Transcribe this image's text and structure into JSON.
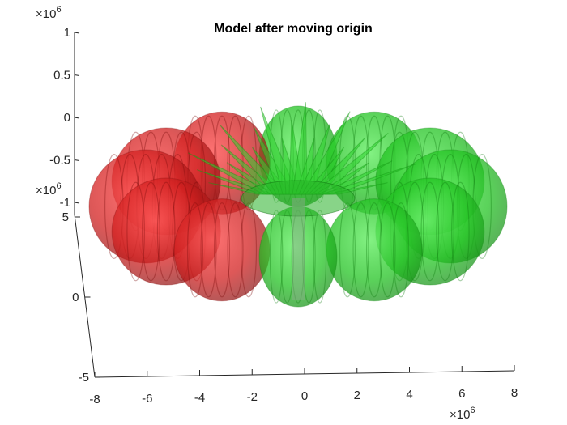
{
  "chart_data": {
    "type": "surface3d",
    "title": "Model after moving origin",
    "xlabel": "",
    "ylabel": "",
    "zlabel": "",
    "x_axis": {
      "ticks": [
        -8,
        -6,
        -4,
        -2,
        0,
        2,
        4,
        6,
        8
      ],
      "tick_labels": [
        "-8",
        "-6",
        "-4",
        "-2",
        "0",
        "2",
        "4",
        "6",
        "8"
      ],
      "multiplier": "×10",
      "multiplier_exp": "6"
    },
    "y_axis": {
      "ticks": [
        -5,
        0,
        5
      ],
      "tick_labels": [
        "-5",
        "0",
        "5"
      ],
      "multiplier": "×10",
      "multiplier_exp": "6"
    },
    "z_axis": {
      "ticks": [
        -1,
        -0.5,
        0,
        0.5,
        1
      ],
      "tick_labels": [
        "-1",
        "-0.5",
        "0",
        "0.5",
        "1"
      ],
      "multiplier": "×10",
      "multiplier_exp": "6"
    },
    "shape": "toroidal lobed surface around a vertical axis, semi-transparent",
    "n_lobes": 12,
    "colors": {
      "left_lobes": "#d42020",
      "right_lobes": "#22c422",
      "axis": "#262626"
    },
    "grid": false,
    "legend": "none"
  }
}
